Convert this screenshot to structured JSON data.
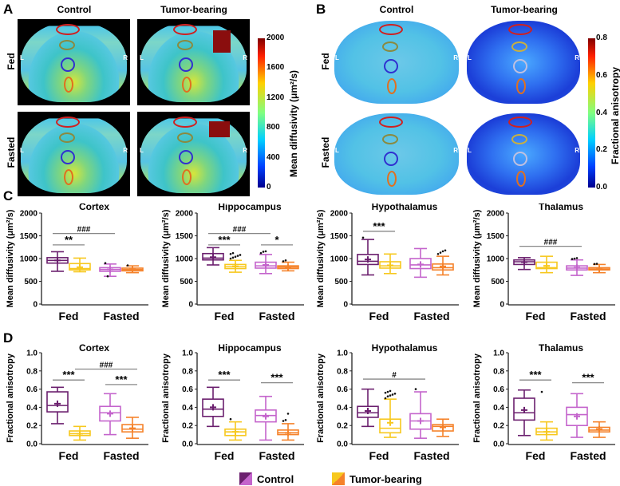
{
  "panels": {
    "A": "A",
    "B": "B",
    "C": "C",
    "D": "D"
  },
  "columns": {
    "control": "Control",
    "tumor": "Tumor-bearing"
  },
  "rows": {
    "fed": "Fed",
    "fasted": "Fasted"
  },
  "lr": {
    "l": "L",
    "r": "R"
  },
  "colorbar_md": {
    "label": "Mean diffusivity (μm²/s)",
    "ticks": [
      "2000",
      "1600",
      "1200",
      "800",
      "400",
      "0"
    ]
  },
  "colorbar_fa": {
    "label": "Fractional anisotropy",
    "ticks": [
      "0.8",
      "0.6",
      "0.4",
      "0.2",
      "0.0"
    ]
  },
  "legend": {
    "control": "Control",
    "tumor": "Tumor-bearing"
  },
  "colors": {
    "control_fed": "#6b1f6e",
    "control_fasted": "#c464cc",
    "tumor_fed": "#f7c81e",
    "tumor_fasted": "#f5822a"
  },
  "chart_data": [
    {
      "type": "box",
      "panel": "C",
      "title": "Cortex",
      "ylabel": "Mean diffusivity (μm²/s)",
      "ylim": [
        0,
        2000
      ],
      "yticks": [
        "0",
        "500",
        "1000",
        "1500",
        "2000"
      ],
      "categories": [
        "Fed",
        "Fasted"
      ],
      "boxes": [
        [
          720,
          900,
          960,
          1020,
          1150,
          960,
          []
        ],
        [
          710,
          750,
          780,
          890,
          1010,
          810,
          []
        ],
        [
          610,
          720,
          760,
          800,
          880,
          760,
          [
            900,
            610
          ]
        ],
        [
          690,
          730,
          760,
          790,
          840,
          760,
          [
            850
          ]
        ]
      ],
      "sig": [
        {
          "label": "**",
          "from": 0,
          "to": 1,
          "y": 1300
        },
        {
          "label": "###",
          "from": 0,
          "to": 2,
          "y": 1550
        }
      ]
    },
    {
      "type": "box",
      "panel": "C",
      "title": "Hippocampus",
      "ylabel": "Mean diffusivity (μm²/s)",
      "ylim": [
        0,
        2000
      ],
      "yticks": [
        "0",
        "500",
        "1000",
        "1500",
        "2000"
      ],
      "categories": [
        "Fed",
        "Fasted"
      ],
      "boxes": [
        [
          860,
          970,
          1010,
          1110,
          1240,
          1030,
          []
        ],
        [
          700,
          780,
          820,
          870,
          960,
          830,
          [
            1000,
            1020,
            1040,
            1060,
            1080,
            1100,
            1120
          ]
        ],
        [
          670,
          790,
          840,
          920,
          1090,
          860,
          [
            1120,
            1150,
            1160
          ]
        ],
        [
          730,
          780,
          810,
          840,
          920,
          800,
          [
            940,
            960
          ]
        ]
      ],
      "sig": [
        {
          "label": "***",
          "from": 0,
          "to": 1,
          "y": 1300
        },
        {
          "label": "###",
          "from": 0,
          "to": 2,
          "y": 1550
        },
        {
          "label": "*",
          "from": 2,
          "to": 3,
          "y": 1300
        }
      ]
    },
    {
      "type": "box",
      "panel": "C",
      "title": "Hypothalamus",
      "ylabel": "Mean diffusivity (μm²/s)",
      "ylim": [
        0,
        2000
      ],
      "yticks": [
        "0",
        "500",
        "1000",
        "1500",
        "2000"
      ],
      "categories": [
        "Fed",
        "Fasted"
      ],
      "boxes": [
        [
          640,
          870,
          940,
          1090,
          1420,
          980,
          [
            1460
          ]
        ],
        [
          670,
          790,
          840,
          930,
          1100,
          850,
          []
        ],
        [
          590,
          780,
          860,
          1000,
          1220,
          870,
          []
        ],
        [
          640,
          750,
          800,
          880,
          1050,
          830,
          [
            1100,
            1130,
            1160,
            1180
          ]
        ]
      ],
      "sig": [
        {
          "label": "***",
          "from": 0,
          "to": 1,
          "y": 1600
        }
      ]
    },
    {
      "type": "box",
      "panel": "C",
      "title": "Thalamus",
      "ylabel": "Mean diffusivity (μm²/s)",
      "ylim": [
        0,
        2000
      ],
      "yticks": [
        "0",
        "500",
        "1000",
        "1500",
        "2000"
      ],
      "categories": [
        "Fed",
        "Fasted"
      ],
      "boxes": [
        [
          760,
          870,
          930,
          970,
          1020,
          920,
          []
        ],
        [
          690,
          780,
          800,
          920,
          1050,
          840,
          []
        ],
        [
          630,
          750,
          790,
          840,
          970,
          800,
          [
            990,
            1000,
            1010
          ]
        ],
        [
          690,
          750,
          770,
          800,
          870,
          770,
          [
            880,
            885
          ]
        ]
      ],
      "sig": [
        {
          "label": "###",
          "from": 0,
          "to": 2,
          "y": 1270
        }
      ]
    },
    {
      "type": "box",
      "panel": "D",
      "title": "Cortex",
      "ylabel": "Fractional anisotropy",
      "ylim": [
        0,
        1
      ],
      "yticks": [
        "0.0",
        "0.2",
        "0.4",
        "0.6",
        "0.8",
        "1.0"
      ],
      "categories": [
        "Fed",
        "Fasted"
      ],
      "boxes": [
        [
          0.22,
          0.35,
          0.42,
          0.57,
          0.62,
          0.44,
          []
        ],
        [
          0.04,
          0.09,
          0.11,
          0.14,
          0.19,
          0.11,
          []
        ],
        [
          0.1,
          0.25,
          0.34,
          0.41,
          0.55,
          0.33,
          []
        ],
        [
          0.06,
          0.13,
          0.16,
          0.21,
          0.29,
          0.17,
          []
        ]
      ],
      "sig": [
        {
          "label": "***",
          "from": 0,
          "to": 1,
          "y": 0.7
        },
        {
          "label": "###",
          "from": 1,
          "to": 3,
          "y": 0.82
        },
        {
          "label": "***",
          "from": 2,
          "to": 3,
          "y": 0.65
        }
      ]
    },
    {
      "type": "box",
      "panel": "D",
      "title": "Hippocampus",
      "ylabel": "Fractional anisotropy",
      "ylim": [
        0,
        1
      ],
      "yticks": [
        "0.0",
        "0.2",
        "0.4",
        "0.6",
        "0.8",
        "1.0"
      ],
      "categories": [
        "Fed",
        "Fasted"
      ],
      "boxes": [
        [
          0.19,
          0.3,
          0.38,
          0.49,
          0.62,
          0.4,
          []
        ],
        [
          0.04,
          0.09,
          0.13,
          0.16,
          0.24,
          0.13,
          [
            0.27
          ]
        ],
        [
          0.04,
          0.24,
          0.31,
          0.37,
          0.52,
          0.3,
          []
        ],
        [
          0.04,
          0.1,
          0.12,
          0.15,
          0.22,
          0.12,
          [
            0.25,
            0.26,
            0.33
          ]
        ]
      ],
      "sig": [
        {
          "label": "***",
          "from": 0,
          "to": 1,
          "y": 0.7
        },
        {
          "label": "***",
          "from": 2,
          "to": 3,
          "y": 0.67
        }
      ]
    },
    {
      "type": "box",
      "panel": "D",
      "title": "Hypothalamus",
      "ylabel": "Fractional anisotropy",
      "ylim": [
        0,
        1
      ],
      "yticks": [
        "0.0",
        "0.2",
        "0.4",
        "0.6",
        "0.8",
        "1.0"
      ],
      "categories": [
        "Fed",
        "Fasted"
      ],
      "boxes": [
        [
          0.19,
          0.29,
          0.34,
          0.41,
          0.6,
          0.36,
          []
        ],
        [
          0.07,
          0.12,
          0.17,
          0.27,
          0.49,
          0.23,
          [
            0.5,
            0.52,
            0.53,
            0.54,
            0.55,
            0.56,
            0.57,
            0.58
          ]
        ],
        [
          0.06,
          0.16,
          0.25,
          0.33,
          0.57,
          0.25,
          [
            0.6
          ]
        ],
        [
          0.08,
          0.14,
          0.19,
          0.21,
          0.27,
          0.18,
          []
        ]
      ],
      "sig": [
        {
          "label": "#",
          "from": 0,
          "to": 2,
          "y": 0.71
        }
      ]
    },
    {
      "type": "box",
      "panel": "D",
      "title": "Thalamus",
      "ylabel": "Fractional anisotropy",
      "ylim": [
        0,
        1
      ],
      "yticks": [
        "0.0",
        "0.2",
        "0.4",
        "0.6",
        "0.8",
        "1.0"
      ],
      "categories": [
        "Fed",
        "Fasted"
      ],
      "boxes": [
        [
          0.09,
          0.26,
          0.34,
          0.5,
          0.59,
          0.37,
          []
        ],
        [
          0.04,
          0.1,
          0.13,
          0.17,
          0.24,
          0.13,
          [
            0.57
          ]
        ],
        [
          0.07,
          0.2,
          0.32,
          0.4,
          0.55,
          0.3,
          []
        ],
        [
          0.07,
          0.13,
          0.15,
          0.18,
          0.24,
          0.16,
          []
        ]
      ],
      "sig": [
        {
          "label": "***",
          "from": 0,
          "to": 1,
          "y": 0.7
        },
        {
          "label": "***",
          "from": 2,
          "to": 3,
          "y": 0.67
        }
      ]
    }
  ]
}
